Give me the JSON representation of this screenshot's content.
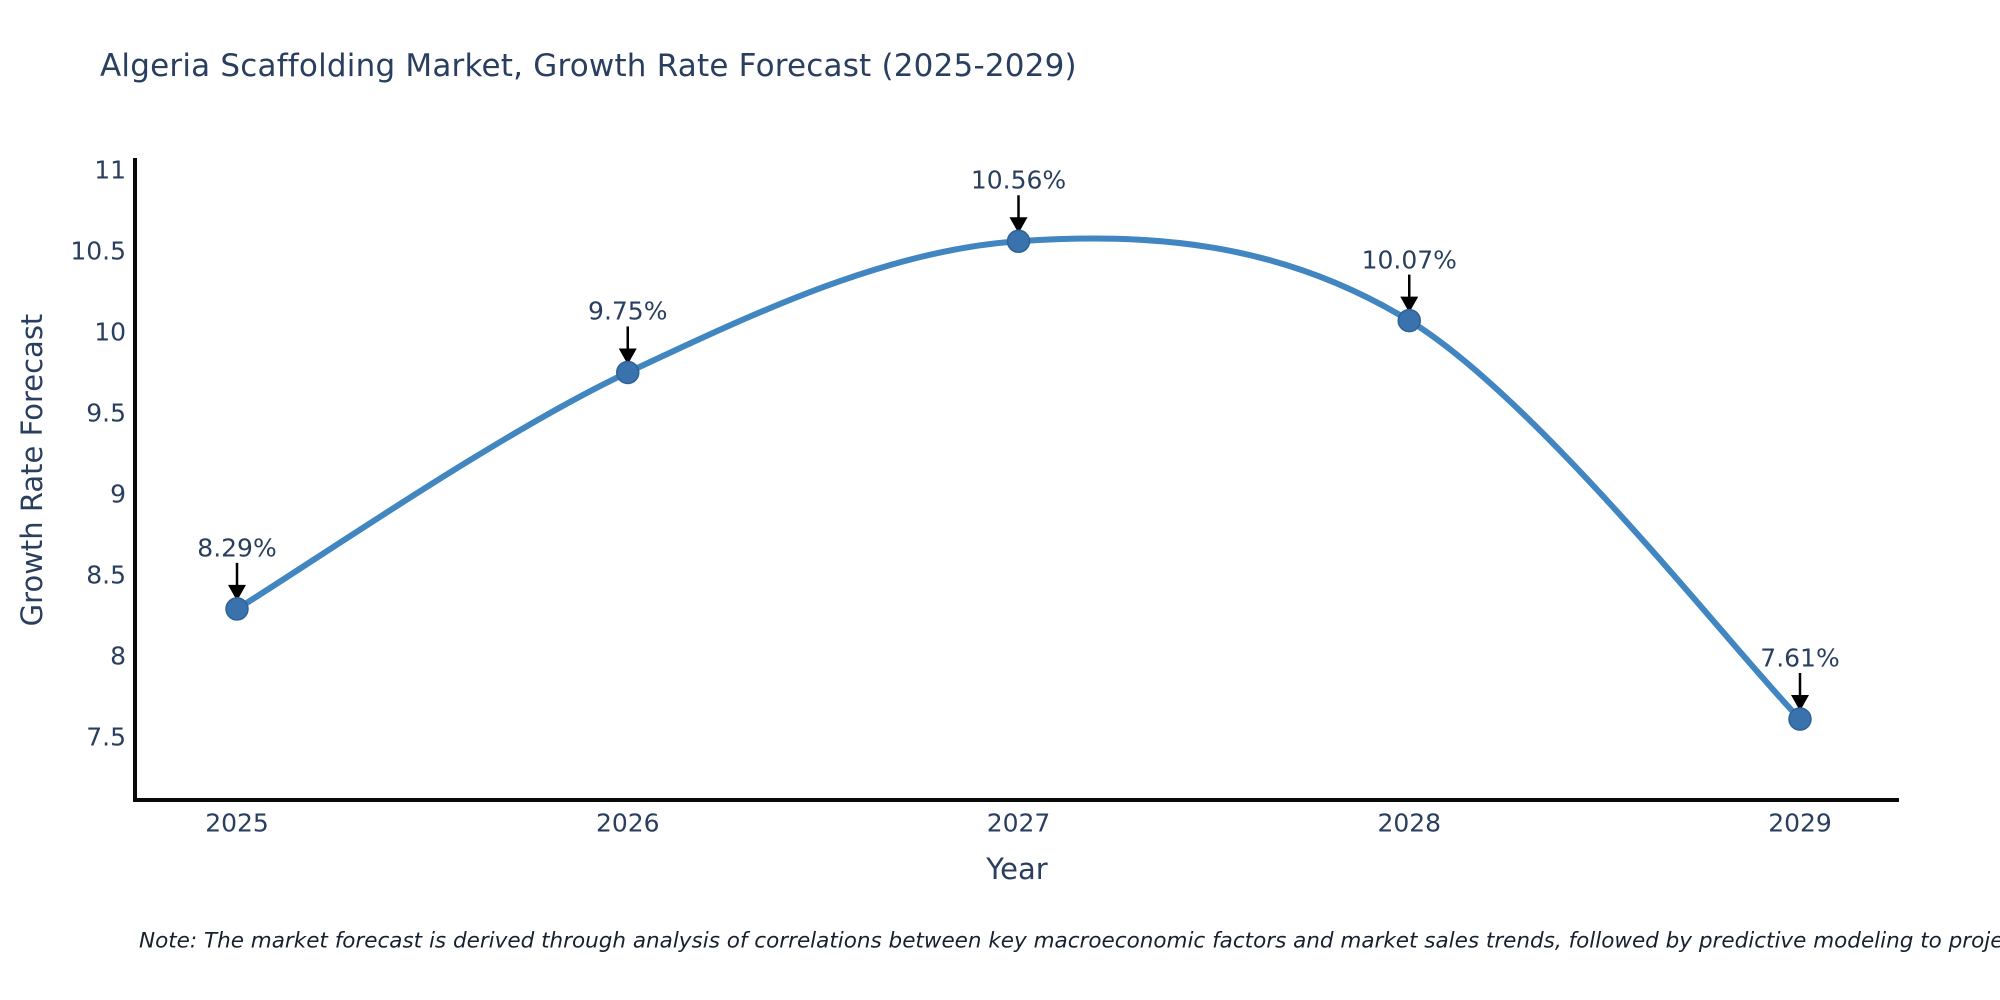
{
  "title": "Algeria Scaffolding Market, Growth Rate Forecast (2025-2029)",
  "note": "Note: The market forecast is derived through analysis of correlations between key macroeconomic factors and market sales trends, followed by predictive modeling to project future sales",
  "chart_data": {
    "type": "line",
    "line_shape": "spline",
    "x": [
      2025,
      2026,
      2027,
      2028,
      2029
    ],
    "series": [
      {
        "name": "Growth Rate Forecast",
        "values": [
          8.29,
          9.75,
          10.56,
          10.07,
          7.61
        ]
      }
    ],
    "point_labels": [
      "8.29%",
      "9.75%",
      "10.56%",
      "10.07%",
      "7.61%"
    ],
    "title": "Algeria Scaffolding Market, Growth Rate Forecast (2025-2029)",
    "xlabel": "Year",
    "ylabel": "Growth Rate Forecast",
    "x_ticks": [
      "2025",
      "2026",
      "2027",
      "2028",
      "2029"
    ],
    "y_ticks": [
      11,
      10.5,
      10,
      9.5,
      9,
      8.5,
      8,
      7.5
    ],
    "ylim": [
      7.1,
      11.1
    ],
    "grid": false,
    "legend": false,
    "colors": {
      "line": "#4186c0",
      "marker": "#3a72ad",
      "marker_edge": "#2f6294",
      "axis_line": "#0a0a0a",
      "annotation_arrow": "#000000",
      "text": "#2a3f5f"
    }
  }
}
